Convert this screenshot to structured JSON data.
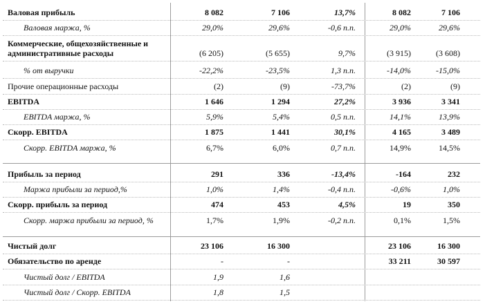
{
  "rows": [
    {
      "label": "Валовая прибыль",
      "v": [
        "8 082",
        "7 106",
        "13,7%",
        "8 082",
        "7 106"
      ]
    },
    {
      "label": "Валовая маржа, %",
      "v": [
        "29,0%",
        "29,6%",
        "-0,6 п.п.",
        "29,0%",
        "29,6%"
      ]
    },
    {
      "label_line1": "Коммерческие, общехозяйственные и",
      "label_line2": "административные расходы",
      "v": [
        "(6 205)",
        "(5 655)",
        "9,7%",
        "(3 915)",
        "(3 608)"
      ]
    },
    {
      "label": "% от выручки",
      "v": [
        "-22,2%",
        "-23,5%",
        "1,3 п.п.",
        "-14,0%",
        "-15,0%"
      ]
    },
    {
      "label": "Прочие операционные расходы",
      "v": [
        "(2)",
        "(9)",
        "-73,7%",
        "(2)",
        "(9)"
      ]
    },
    {
      "label": "EBITDA",
      "v": [
        "1 646",
        "1 294",
        "27,2%",
        "3 936",
        "3 341"
      ]
    },
    {
      "label": "EBITDA маржа, %",
      "v": [
        "5,9%",
        "5,4%",
        "0,5 п.п.",
        "14,1%",
        "13,9%"
      ]
    },
    {
      "label": "Скорр. EBITDA",
      "v": [
        "1 875",
        "1 441",
        "30,1%",
        "4 165",
        "3 489"
      ]
    },
    {
      "label": "Скорр. EBITDA маржа, %",
      "v": [
        "6,7%",
        "6,0%",
        "0,7 п.п.",
        "14,9%",
        "14,5%"
      ]
    },
    {
      "label": "Прибыль за период",
      "v": [
        "291",
        "336",
        "-13,4%",
        "-164",
        "232"
      ]
    },
    {
      "label": "Маржа прибыли за период,%",
      "v": [
        "1,0%",
        "1,4%",
        "-0,4 п.п.",
        "-0,6%",
        "1,0%"
      ]
    },
    {
      "label": "Скорр. прибыль за период",
      "v": [
        "474",
        "453",
        "4,5%",
        "19",
        "350"
      ]
    },
    {
      "label": "Скорр. маржа прибыли за период, %",
      "v": [
        "1,7%",
        "1,9%",
        "-0,2 п.п.",
        "0,1%",
        "1,5%"
      ]
    },
    {
      "label": "Чистый долг",
      "v": [
        "23 106",
        "16 300",
        "",
        "23 106",
        "16 300"
      ]
    },
    {
      "label": "Обязательство по аренде",
      "v": [
        "-",
        "-",
        "",
        "33 211",
        "30 597"
      ]
    },
    {
      "label": "Чистый долг / EBITDA",
      "v": [
        "1,9",
        "1,6",
        "",
        "",
        ""
      ]
    },
    {
      "label": "Чистый долг / Скорр. EBITDA",
      "v": [
        "1,8",
        "1,5",
        "",
        "",
        ""
      ]
    }
  ]
}
